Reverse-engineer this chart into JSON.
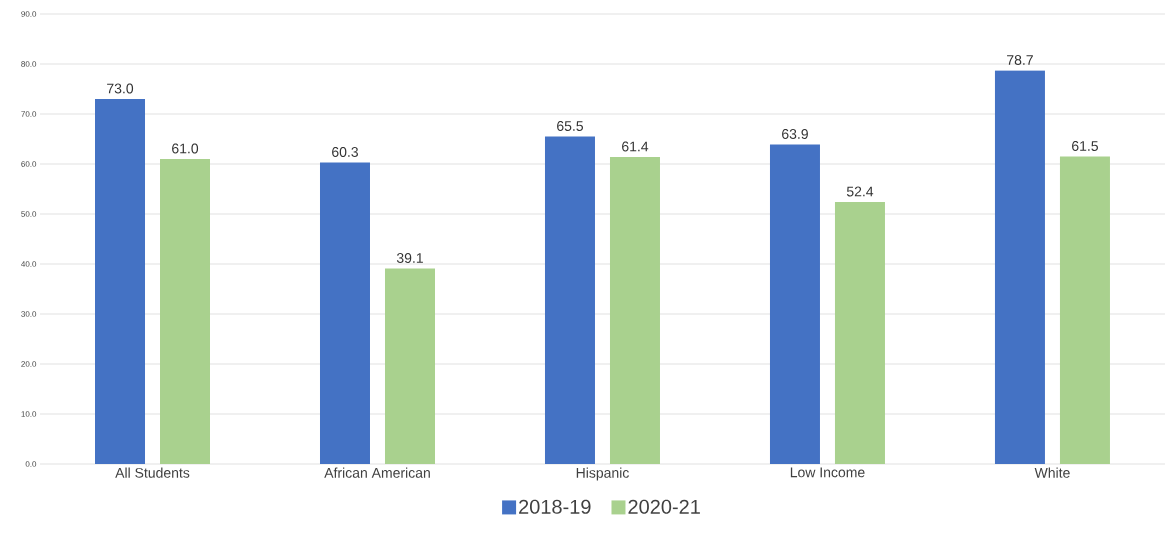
{
  "chart_data": {
    "type": "bar",
    "categories": [
      "All Students",
      "African American",
      "Hispanic",
      "Low Income",
      "White"
    ],
    "series": [
      {
        "name": "2018-19",
        "color": "#4472c4",
        "values": [
          73.0,
          60.3,
          65.5,
          63.9,
          78.7
        ],
        "value_labels": [
          "73.0",
          "60.3",
          "65.5",
          "63.9",
          "78.7"
        ]
      },
      {
        "name": "2020-21",
        "color": "#a9d18e",
        "values": [
          61.0,
          39.1,
          61.4,
          52.4,
          61.5
        ],
        "value_labels": [
          "61.0",
          "39.1",
          "61.4",
          "52.4",
          "61.5"
        ]
      }
    ],
    "ylim": [
      0,
      90
    ],
    "yticks": [
      {
        "value": 0,
        "label": "0.0"
      },
      {
        "value": 10,
        "label": "10.0"
      },
      {
        "value": 20,
        "label": "20.0"
      },
      {
        "value": 30,
        "label": "30.0"
      },
      {
        "value": 40,
        "label": "40.0"
      },
      {
        "value": 50,
        "label": "50.0"
      },
      {
        "value": 60,
        "label": "60.0"
      },
      {
        "value": 70,
        "label": "70.0"
      },
      {
        "value": 80,
        "label": "80.0"
      },
      {
        "value": 90,
        "label": "90.0"
      }
    ],
    "grid": "y",
    "legend": "bottom"
  }
}
